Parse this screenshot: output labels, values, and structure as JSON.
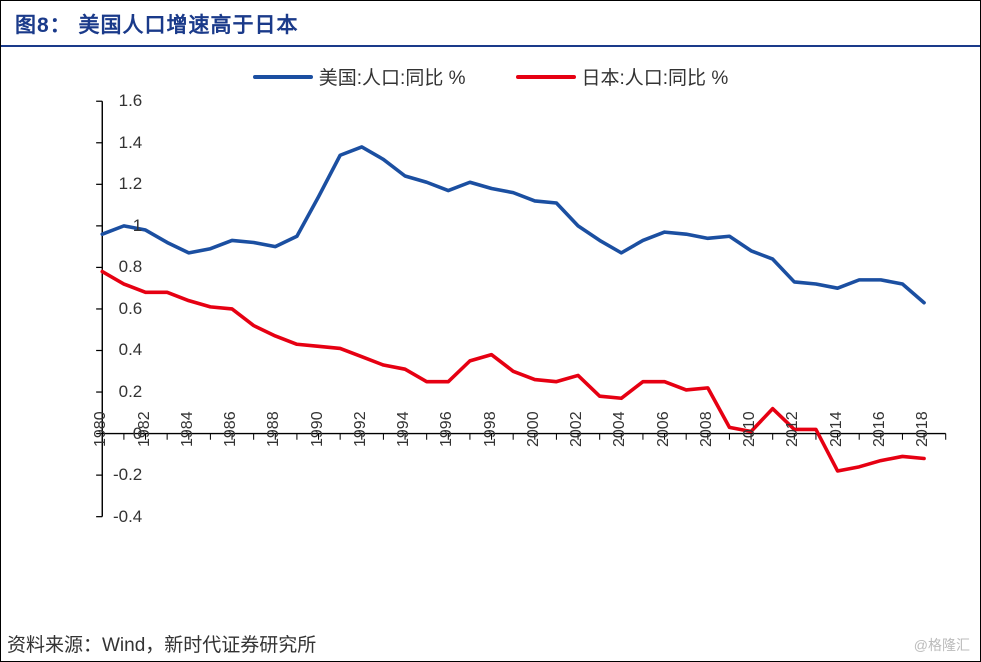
{
  "title": "图8：  美国人口增速高于日本",
  "legend": {
    "us": "美国:人口:同比 %",
    "jp": "日本:人口:同比 %"
  },
  "source": "资料来源：Wind，新时代证券研究所",
  "watermark": "@格隆汇",
  "chart": {
    "type": "line",
    "colors": {
      "us": "#1b4fa1",
      "jp": "#e60012",
      "axis": "#000000",
      "tick_text": "#333333",
      "background": "#ffffff",
      "title": "#1a3a8a"
    },
    "line_width": 3.5,
    "y_axis": {
      "min": -0.4,
      "max": 1.6,
      "tick_step": 0.2,
      "ticks": [
        -0.4,
        -0.2,
        0,
        0.2,
        0.4,
        0.6,
        0.8,
        1,
        1.2,
        1.4,
        1.6
      ],
      "tick_fontsize": 17
    },
    "x_axis": {
      "min": 1980,
      "max": 2019,
      "tick_years": [
        1980,
        1982,
        1984,
        1986,
        1988,
        1990,
        1992,
        1994,
        1996,
        1998,
        2000,
        2002,
        2004,
        2006,
        2008,
        2010,
        2012,
        2014,
        2016,
        2018
      ],
      "tick_fontsize": 16,
      "label_rotation": -90
    },
    "series": {
      "us": {
        "years": [
          1980,
          1981,
          1982,
          1983,
          1984,
          1985,
          1986,
          1987,
          1988,
          1989,
          1990,
          1991,
          1992,
          1993,
          1994,
          1995,
          1996,
          1997,
          1998,
          1999,
          2000,
          2001,
          2002,
          2003,
          2004,
          2005,
          2006,
          2007,
          2008,
          2009,
          2010,
          2011,
          2012,
          2013,
          2014,
          2015,
          2016,
          2017,
          2018
        ],
        "values": [
          0.96,
          1.0,
          0.98,
          0.92,
          0.87,
          0.89,
          0.93,
          0.92,
          0.9,
          0.95,
          1.14,
          1.34,
          1.38,
          1.32,
          1.24,
          1.21,
          1.17,
          1.21,
          1.18,
          1.16,
          1.12,
          1.11,
          1.0,
          0.93,
          0.87,
          0.93,
          0.97,
          0.96,
          0.94,
          0.95,
          0.88,
          0.84,
          0.73,
          0.72,
          0.7,
          0.74,
          0.74,
          0.72,
          0.63
        ]
      },
      "jp": {
        "years": [
          1980,
          1981,
          1982,
          1983,
          1984,
          1985,
          1986,
          1987,
          1988,
          1989,
          1990,
          1991,
          1992,
          1993,
          1994,
          1995,
          1996,
          1997,
          1998,
          1999,
          2000,
          2001,
          2002,
          2003,
          2004,
          2005,
          2006,
          2007,
          2008,
          2009,
          2010,
          2011,
          2012,
          2013,
          2014,
          2015,
          2016,
          2017,
          2018
        ],
        "values": [
          0.78,
          0.72,
          0.68,
          0.68,
          0.64,
          0.61,
          0.6,
          0.52,
          0.47,
          0.43,
          0.42,
          0.41,
          0.37,
          0.33,
          0.31,
          0.25,
          0.25,
          0.35,
          0.38,
          0.3,
          0.26,
          0.25,
          0.28,
          0.18,
          0.17,
          0.25,
          0.25,
          0.21,
          0.22,
          0.03,
          0.01,
          0.12,
          0.02,
          0.02,
          -0.18,
          -0.16,
          -0.13,
          -0.11,
          -0.12
        ]
      }
    }
  }
}
